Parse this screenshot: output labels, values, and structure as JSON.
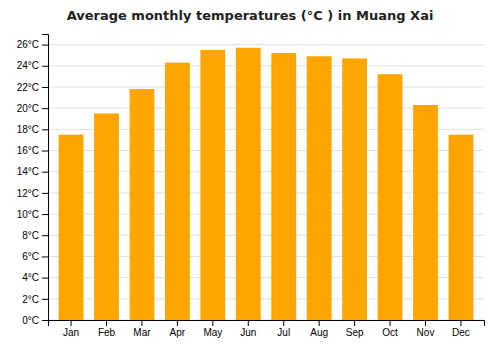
{
  "chart_data": {
    "type": "bar",
    "title": "Average monthly temperatures (°C ) in Muang Xai",
    "categories": [
      "Jan",
      "Feb",
      "Mar",
      "Apr",
      "May",
      "Jun",
      "Jul",
      "Aug",
      "Sep",
      "Oct",
      "Nov",
      "Dec"
    ],
    "values": [
      17.5,
      19.5,
      21.8,
      24.3,
      25.5,
      25.7,
      25.2,
      24.9,
      24.7,
      23.2,
      20.3,
      17.5
    ],
    "color": "#FFA500",
    "ylim": [
      0,
      27
    ],
    "yticks": [
      {
        "value": 0,
        "label": "0°C"
      },
      {
        "value": 2,
        "label": "2°C"
      },
      {
        "value": 4,
        "label": "4°C"
      },
      {
        "value": 6,
        "label": "6°C"
      },
      {
        "value": 8,
        "label": "8°C"
      },
      {
        "value": 10,
        "label": "10°C"
      },
      {
        "value": 12,
        "label": "12°C"
      },
      {
        "value": 14,
        "label": "14°C"
      },
      {
        "value": 16,
        "label": "16°C"
      },
      {
        "value": 18,
        "label": "18°C"
      },
      {
        "value": 20,
        "label": "20°C"
      },
      {
        "value": 22,
        "label": "22°C"
      },
      {
        "value": 24,
        "label": "24°C"
      },
      {
        "value": 26,
        "label": "26°C"
      }
    ],
    "grid": true
  }
}
